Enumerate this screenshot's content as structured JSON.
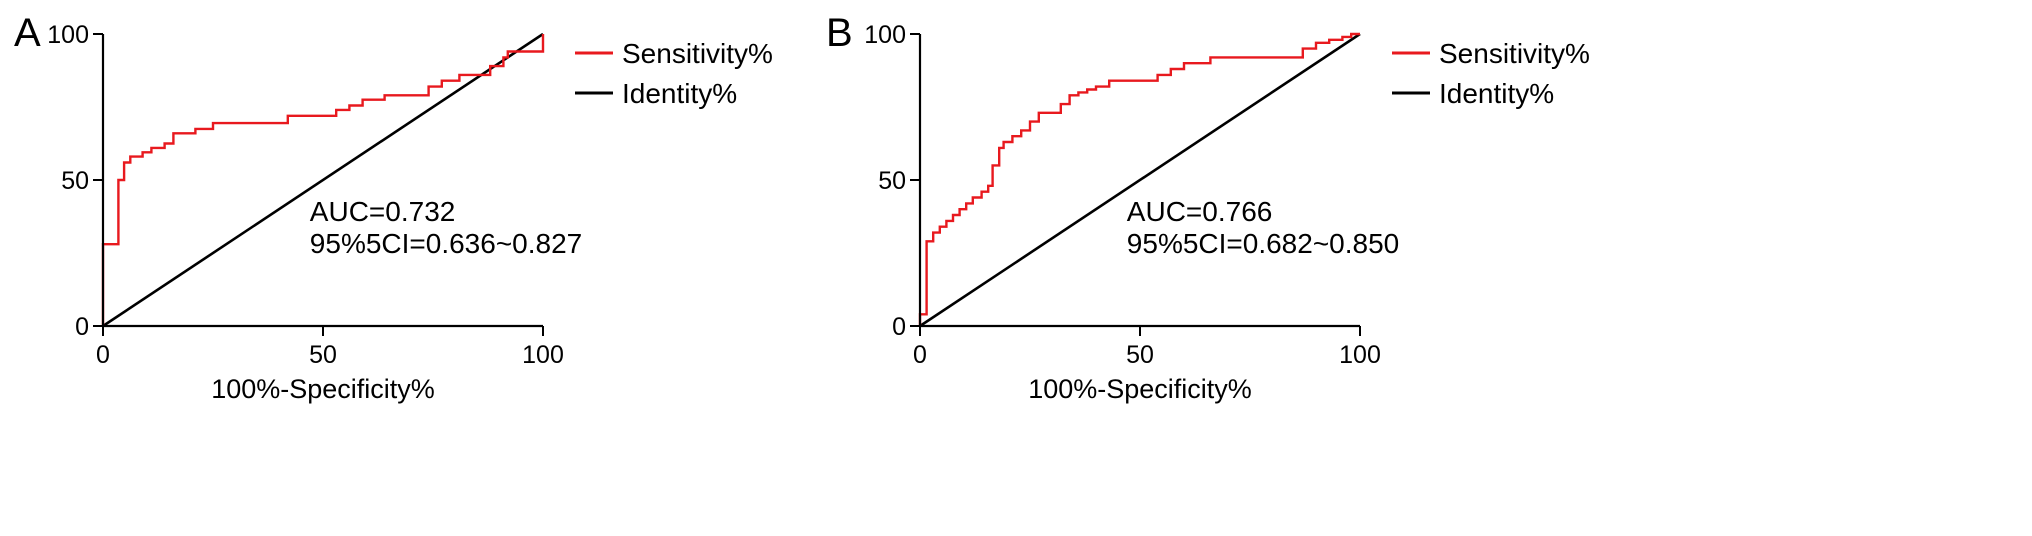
{
  "chart_data": [
    {
      "panel": "A",
      "type": "line",
      "xlabel": "100%-Specificity%",
      "ylabel": "",
      "xlim": [
        0,
        100
      ],
      "ylim": [
        0,
        100
      ],
      "xticks": [
        0,
        50,
        100
      ],
      "yticks": [
        0,
        50,
        100
      ],
      "xtick_labels": [
        "0",
        "50",
        "100"
      ],
      "ytick_labels": [
        "0",
        "50",
        "100"
      ],
      "legend": {
        "position": "right",
        "entries": [
          "Sensitivity%",
          "Identity%"
        ]
      },
      "annotation": {
        "line1": "AUC=0.732",
        "line2": "95%5CI=0.636~0.827"
      },
      "series": [
        {
          "name": "Sensitivity%",
          "color": "#e8191e",
          "x": [
            0,
            0,
            3.5,
            3.5,
            4.8,
            4.8,
            6.2,
            6.2,
            9,
            9,
            11,
            11,
            14,
            14,
            16,
            16,
            21,
            21,
            25,
            25,
            42,
            42,
            53,
            53,
            56,
            56,
            59,
            59,
            64,
            64,
            74,
            74,
            77,
            77,
            81,
            81,
            88,
            88,
            91,
            91,
            92,
            92,
            100,
            100
          ],
          "y": [
            0,
            28,
            28,
            50,
            50,
            56,
            56,
            58,
            58,
            59.5,
            59.5,
            61,
            61,
            62.5,
            62.5,
            66,
            66,
            67.5,
            67.5,
            69.5,
            69.5,
            72,
            72,
            74,
            74,
            75.5,
            75.5,
            77.5,
            77.5,
            79,
            79,
            82,
            82,
            84,
            84,
            86,
            86,
            89,
            89,
            92,
            92,
            94,
            94,
            100
          ]
        },
        {
          "name": "Identity%",
          "color": "#000000",
          "x": [
            0,
            100
          ],
          "y": [
            0,
            100
          ]
        }
      ]
    },
    {
      "panel": "B",
      "type": "line",
      "xlabel": "100%-Specificity%",
      "ylabel": "",
      "xlim": [
        0,
        100
      ],
      "ylim": [
        0,
        100
      ],
      "xticks": [
        0,
        50,
        100
      ],
      "yticks": [
        0,
        50,
        100
      ],
      "xtick_labels": [
        "0",
        "50",
        "100"
      ],
      "ytick_labels": [
        "0",
        "50",
        "100"
      ],
      "legend": {
        "position": "right",
        "entries": [
          "Sensitivity%",
          "Identity%"
        ]
      },
      "annotation": {
        "line1": "AUC=0.766",
        "line2": "95%5CI=0.682~0.850"
      },
      "series": [
        {
          "name": "Sensitivity%",
          "color": "#e8191e",
          "x": [
            0,
            0,
            1.5,
            1.5,
            3,
            3,
            4.5,
            4.5,
            6,
            6,
            7.5,
            7.5,
            9,
            9,
            10.5,
            10.5,
            12,
            12,
            14,
            14,
            15.5,
            15.5,
            16.5,
            16.5,
            18,
            18,
            19,
            19,
            21,
            21,
            23,
            23,
            25,
            25,
            27,
            27,
            32,
            32,
            34,
            34,
            36,
            36,
            38,
            38,
            40,
            40,
            43,
            43,
            54,
            54,
            57,
            57,
            60,
            60,
            66,
            66,
            87,
            87,
            90,
            90,
            93,
            93,
            96,
            96,
            98,
            98,
            100
          ],
          "y": [
            0,
            4,
            4,
            29,
            29,
            32,
            32,
            34,
            34,
            36,
            36,
            38,
            38,
            40,
            40,
            42,
            42,
            44,
            44,
            46,
            46,
            48,
            48,
            55,
            55,
            61,
            61,
            63,
            63,
            65,
            65,
            67,
            67,
            70,
            70,
            73,
            73,
            76,
            76,
            79,
            79,
            80,
            80,
            81,
            81,
            82,
            82,
            84,
            84,
            86,
            86,
            88,
            88,
            90,
            90,
            92,
            92,
            95,
            95,
            97,
            97,
            98,
            98,
            99,
            99,
            100,
            100
          ]
        },
        {
          "name": "Identity%",
          "color": "#000000",
          "x": [
            0,
            100
          ],
          "y": [
            0,
            100
          ]
        }
      ]
    }
  ]
}
